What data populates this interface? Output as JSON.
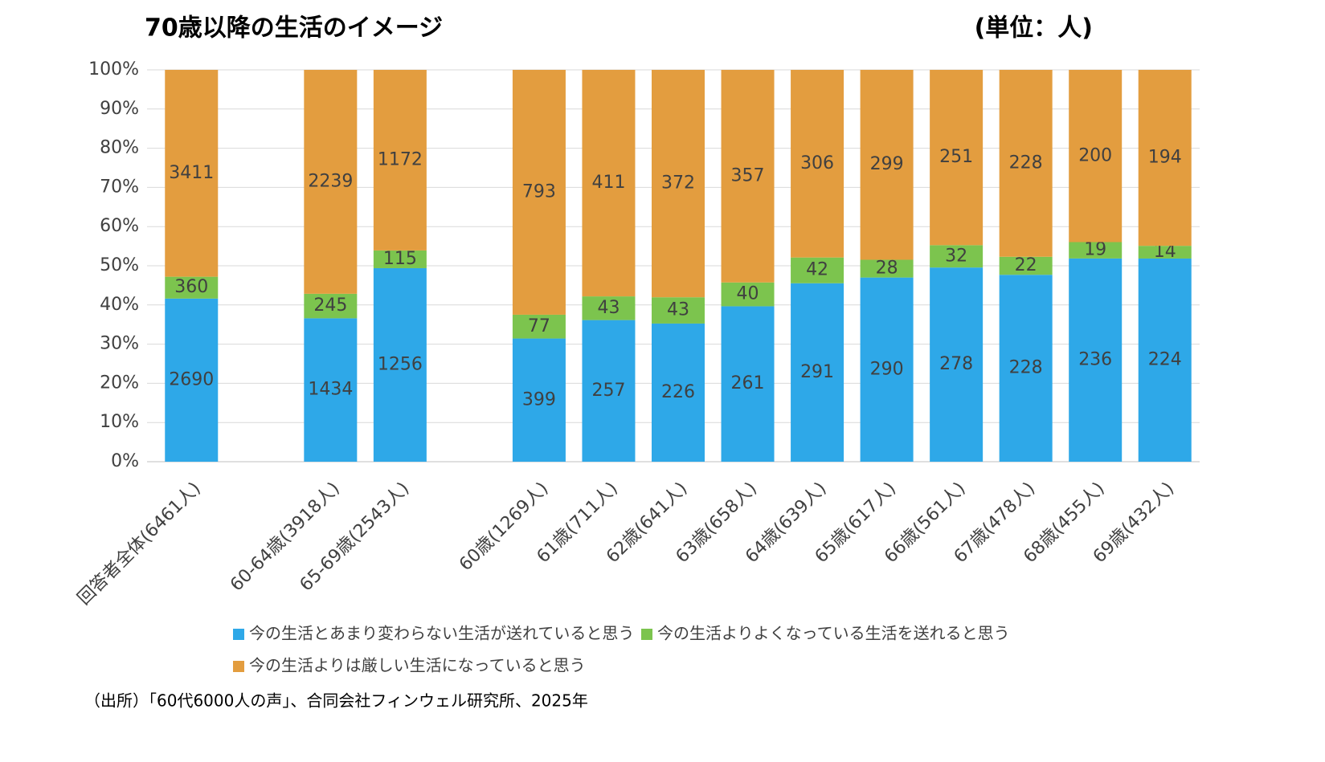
{
  "chart_data": {
    "type": "bar",
    "stacked": "percent",
    "title": "70歳以降の生活のイメージ",
    "subtitle": "(単位：人)",
    "source": "（出所）「60代6000人の声」、合同会社フィンウェル研究所、2025年",
    "categories": [
      "回答者全体(6461人)",
      null,
      "60-64歳(3918人)",
      "65-69歳(2543人)",
      null,
      "60歳(1269人)",
      "61歳(711人)",
      "62歳(641人)",
      "63歳(658人)",
      "64歳(639人)",
      "65歳(617人)",
      "66歳(561人)",
      "67歳(478人)",
      "68歳(455人)",
      "69歳(432人)"
    ],
    "series": [
      {
        "name": "今の生活とあまり変わらない生活が送れていると思う",
        "color": "#2ea8e8",
        "values": [
          2690,
          null,
          1434,
          1256,
          null,
          399,
          257,
          226,
          261,
          291,
          290,
          278,
          228,
          236,
          224
        ]
      },
      {
        "name": "今の生活よりよくなっている生活を送れると思う",
        "color": "#7cc44e",
        "values": [
          360,
          null,
          245,
          115,
          null,
          77,
          43,
          43,
          40,
          42,
          28,
          32,
          22,
          19,
          14
        ]
      },
      {
        "name": "今の生活よりは厳しい生活になっていると思う",
        "color": "#e39d3f",
        "values": [
          3411,
          null,
          2239,
          1172,
          null,
          793,
          411,
          372,
          357,
          306,
          299,
          251,
          228,
          200,
          194
        ]
      }
    ],
    "ylim": [
      0,
      100
    ],
    "yticks": [
      {
        "value": 0,
        "label": "0%"
      },
      {
        "value": 10,
        "label": "10%"
      },
      {
        "value": 20,
        "label": "20%"
      },
      {
        "value": 30,
        "label": "30%"
      },
      {
        "value": 40,
        "label": "40%"
      },
      {
        "value": 50,
        "label": "50%"
      },
      {
        "value": 60,
        "label": "60%"
      },
      {
        "value": 70,
        "label": "70%"
      },
      {
        "value": 80,
        "label": "80%"
      },
      {
        "value": 90,
        "label": "90%"
      },
      {
        "value": 100,
        "label": "100%"
      }
    ],
    "grid": true
  }
}
